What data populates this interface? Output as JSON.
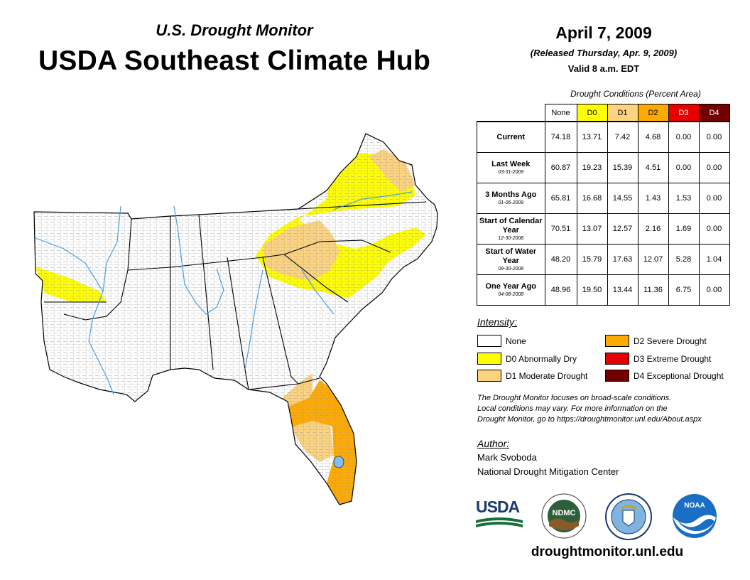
{
  "header": {
    "subtitle": "U.S. Drought Monitor",
    "title": "USDA Southeast Climate Hub",
    "date": "April 7, 2009",
    "released": "(Released Thursday, Apr. 9, 2009)",
    "valid": "Valid 8 a.m. EDT"
  },
  "table": {
    "title": "Drought Conditions (Percent Area)",
    "columns": [
      "None",
      "D0",
      "D1",
      "D2",
      "D3",
      "D4"
    ],
    "rows": [
      {
        "label": "Current",
        "date": "",
        "values": [
          "74.18",
          "13.71",
          "7.42",
          "4.68",
          "0.00",
          "0.00"
        ]
      },
      {
        "label": "Last Week",
        "date": "03-31-2009",
        "values": [
          "60.87",
          "19.23",
          "15.39",
          "4.51",
          "0.00",
          "0.00"
        ]
      },
      {
        "label": "3 Months Ago",
        "date": "01-06-2009",
        "values": [
          "65.81",
          "16.68",
          "14.55",
          "1.43",
          "1.53",
          "0.00"
        ]
      },
      {
        "label": "Start of Calendar Year",
        "date": "12-30-2008",
        "values": [
          "70.51",
          "13.07",
          "12.57",
          "2.16",
          "1.69",
          "0.00"
        ]
      },
      {
        "label": "Start of Water Year",
        "date": "09-30-2008",
        "values": [
          "48.20",
          "15.79",
          "17.63",
          "12.07",
          "5.28",
          "1.04"
        ]
      },
      {
        "label": "One Year Ago",
        "date": "04-08-2008",
        "values": [
          "48.96",
          "19.50",
          "13.44",
          "11.36",
          "6.75",
          "0.00"
        ]
      }
    ]
  },
  "legend": {
    "heading": "Intensity:",
    "items": [
      {
        "label": "None",
        "color": "#ffffff"
      },
      {
        "label": "D0 Abnormally Dry",
        "color": "#ffff00"
      },
      {
        "label": "D1 Moderate Drought",
        "color": "#fcd37f"
      },
      {
        "label": "D2 Severe Drought",
        "color": "#ffaa00"
      },
      {
        "label": "D3 Extreme Drought",
        "color": "#e60000"
      },
      {
        "label": "D4 Exceptional Drought",
        "color": "#730000"
      }
    ]
  },
  "note": {
    "line1": "The Drought Monitor focuses on broad-scale conditions.",
    "line2": "Local conditions may vary. For more information on the",
    "line3": "Drought Monitor, go to https://droughtmonitor.unl.edu/About.aspx"
  },
  "author": {
    "heading": "Author:",
    "name": "Mark Svoboda",
    "org": "National Drought Mitigation Center"
  },
  "logos": {
    "usda": "USDA",
    "ndmc": "NDMC",
    "noaa": "NOAA"
  },
  "footer": {
    "url": "droughtmonitor.unl.edu"
  }
}
